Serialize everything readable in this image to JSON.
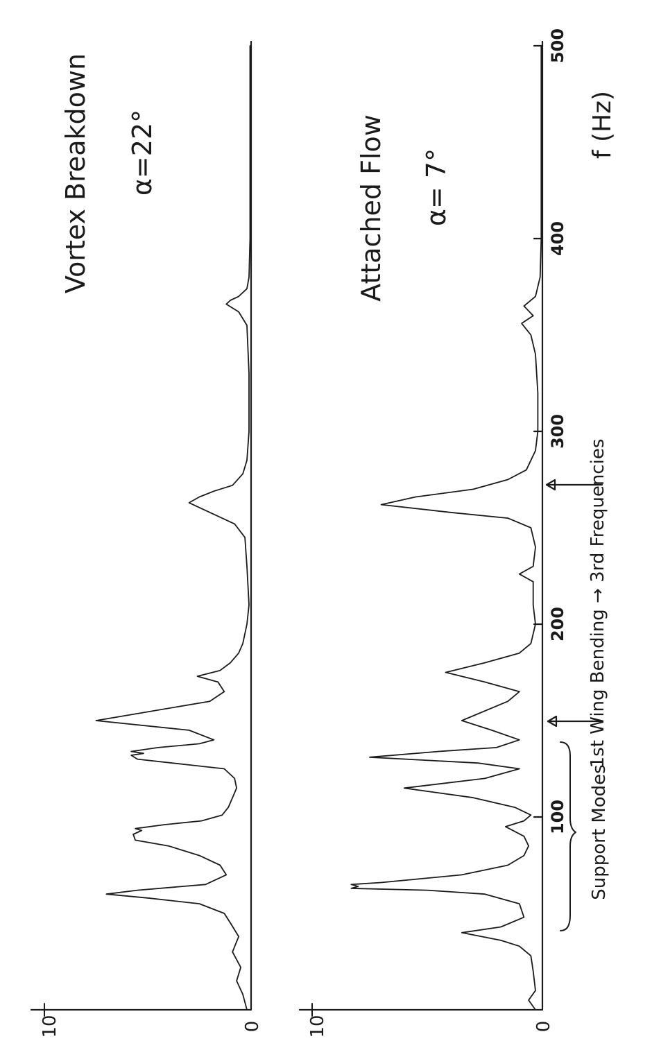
{
  "chart_data": [
    {
      "type": "line",
      "title": "Vortex Breakdown",
      "subtitle": "α=22°",
      "ylim": [
        0,
        10
      ],
      "yticks": [
        "10",
        "0"
      ],
      "xlim": [
        0,
        500
      ],
      "series": [
        {
          "x": [
            0,
            8,
            15,
            22,
            30,
            38,
            45,
            50,
            55,
            58,
            60,
            62,
            65,
            70,
            75,
            80,
            85,
            88,
            91,
            93,
            94,
            96,
            98,
            101,
            105,
            110,
            115,
            120,
            125,
            127,
            130,
            132,
            133,
            134,
            136,
            138,
            140,
            145,
            150,
            160,
            165,
            170,
            173,
            176,
            180,
            185,
            190,
            200,
            210,
            230,
            245,
            252,
            258,
            263,
            266,
            269,
            272,
            278,
            285,
            300,
            330,
            355,
            362,
            366,
            368,
            370,
            374,
            380,
            400,
            450,
            500
          ],
          "values": [
            0.2,
            0.4,
            0.7,
            0.5,
            0.9,
            0.6,
            1.0,
            1.3,
            2.5,
            5.0,
            7.0,
            5.5,
            2.2,
            1.2,
            1.5,
            2.5,
            4.0,
            5.6,
            5.7,
            5.3,
            5.6,
            4.2,
            2.4,
            1.4,
            1.1,
            0.9,
            0.7,
            0.8,
            1.3,
            3.0,
            5.5,
            5.8,
            5.2,
            5.8,
            4.5,
            2.5,
            1.8,
            3.0,
            7.5,
            2.0,
            1.3,
            1.6,
            2.6,
            1.5,
            1.0,
            0.6,
            0.4,
            0.2,
            0.1,
            0.2,
            0.3,
            0.8,
            2.0,
            3.0,
            2.5,
            1.8,
            0.9,
            0.4,
            0.2,
            0.1,
            0.1,
            0.2,
            0.6,
            1.2,
            1.0,
            0.6,
            0.2,
            0.1,
            0.05,
            0.05,
            0.05
          ]
        }
      ]
    },
    {
      "type": "line",
      "title": "Attached Flow",
      "subtitle": "α= 7°",
      "ylim": [
        0,
        10
      ],
      "yticks": [
        "10",
        "0"
      ],
      "xlim": [
        0,
        500
      ],
      "xlabel": "f (Hz)",
      "xticks": [
        "100",
        "200",
        "300",
        "400",
        "500"
      ],
      "series": [
        {
          "x": [
            0,
            5,
            10,
            20,
            28,
            33,
            36,
            40,
            43,
            48,
            55,
            60,
            62,
            63,
            64,
            65,
            66,
            70,
            75,
            80,
            85,
            90,
            95,
            98,
            101,
            105,
            110,
            115,
            120,
            125,
            128,
            131,
            134,
            136,
            140,
            145,
            150,
            160,
            165,
            170,
            175,
            180,
            185,
            190,
            200,
            210,
            222,
            226,
            230,
            240,
            250,
            255,
            258,
            262,
            266,
            270,
            275,
            280,
            290,
            300,
            320,
            340,
            350,
            356,
            360,
            365,
            370,
            380,
            400,
            450,
            500
          ],
          "values": [
            0.3,
            0.6,
            0.3,
            0.4,
            0.5,
            1.0,
            1.8,
            3.5,
            1.8,
            0.8,
            1.0,
            2.5,
            5.0,
            8.3,
            8.0,
            8.3,
            7.0,
            3.5,
            1.5,
            0.8,
            0.6,
            0.8,
            1.6,
            0.8,
            0.5,
            1.2,
            3.0,
            6.0,
            2.5,
            1.0,
            2.8,
            7.5,
            4.5,
            2.0,
            1.0,
            2.2,
            3.5,
            1.5,
            1.0,
            2.5,
            4.2,
            2.5,
            1.0,
            0.5,
            0.3,
            0.4,
            0.4,
            1.0,
            0.4,
            0.3,
            0.5,
            1.5,
            4.0,
            7.0,
            5.5,
            3.0,
            1.5,
            0.7,
            0.3,
            0.2,
            0.2,
            0.3,
            0.5,
            0.9,
            0.4,
            0.8,
            0.3,
            0.1,
            0.05,
            0.05,
            0.05
          ]
        }
      ]
    }
  ],
  "annotations": {
    "support_modes": "Support Modes",
    "wing_bending": "1st Wing Bending → 3rd Frequencies"
  },
  "colors": {
    "ink": "#1a1a1a",
    "paper": "#ffffff"
  }
}
